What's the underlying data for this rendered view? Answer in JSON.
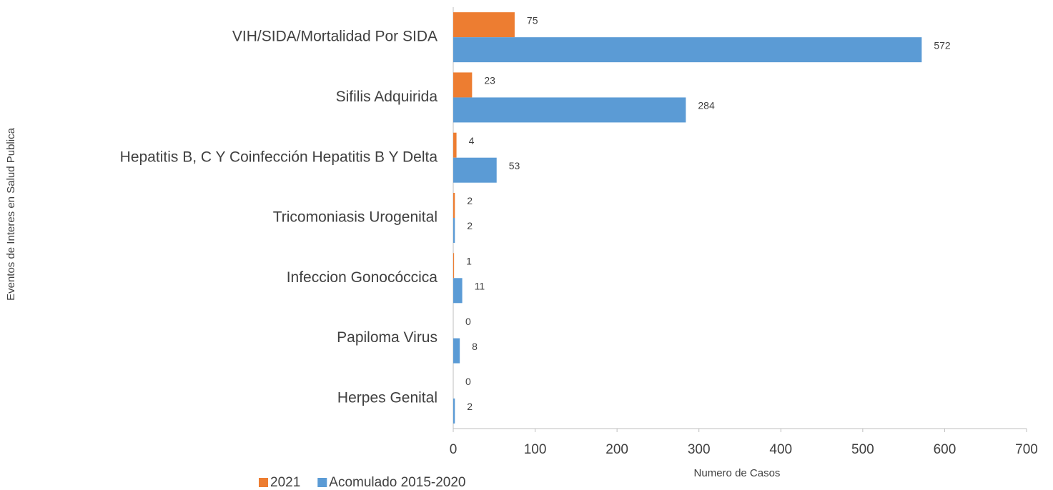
{
  "chart_data": {
    "type": "bar",
    "orientation": "horizontal",
    "x_label": "Numero de Casos",
    "y_label": "Eventos de Interes en Salud Publica",
    "categories": [
      "VIH/SIDA/Mortalidad Por SIDA",
      "Sifilis Adquirida",
      "Hepatitis B, C Y Coinfección Hepatitis B Y Delta",
      "Tricomoniasis Urogenital",
      "Infeccion Gonocóccica",
      "Papiloma Virus",
      "Herpes Genital"
    ],
    "series": [
      {
        "name": "2021",
        "color": "#ed7d31",
        "values": [
          75,
          23,
          4,
          2,
          1,
          0,
          0
        ]
      },
      {
        "name": "Acomulado 2015-2020",
        "color": "#5b9bd5",
        "values": [
          572,
          284,
          53,
          2,
          11,
          8,
          2
        ]
      }
    ],
    "xlim": [
      0,
      700
    ],
    "xticks": [
      0,
      100,
      200,
      300,
      400,
      500,
      600,
      700
    ],
    "grid": false,
    "legend": "bottom"
  }
}
